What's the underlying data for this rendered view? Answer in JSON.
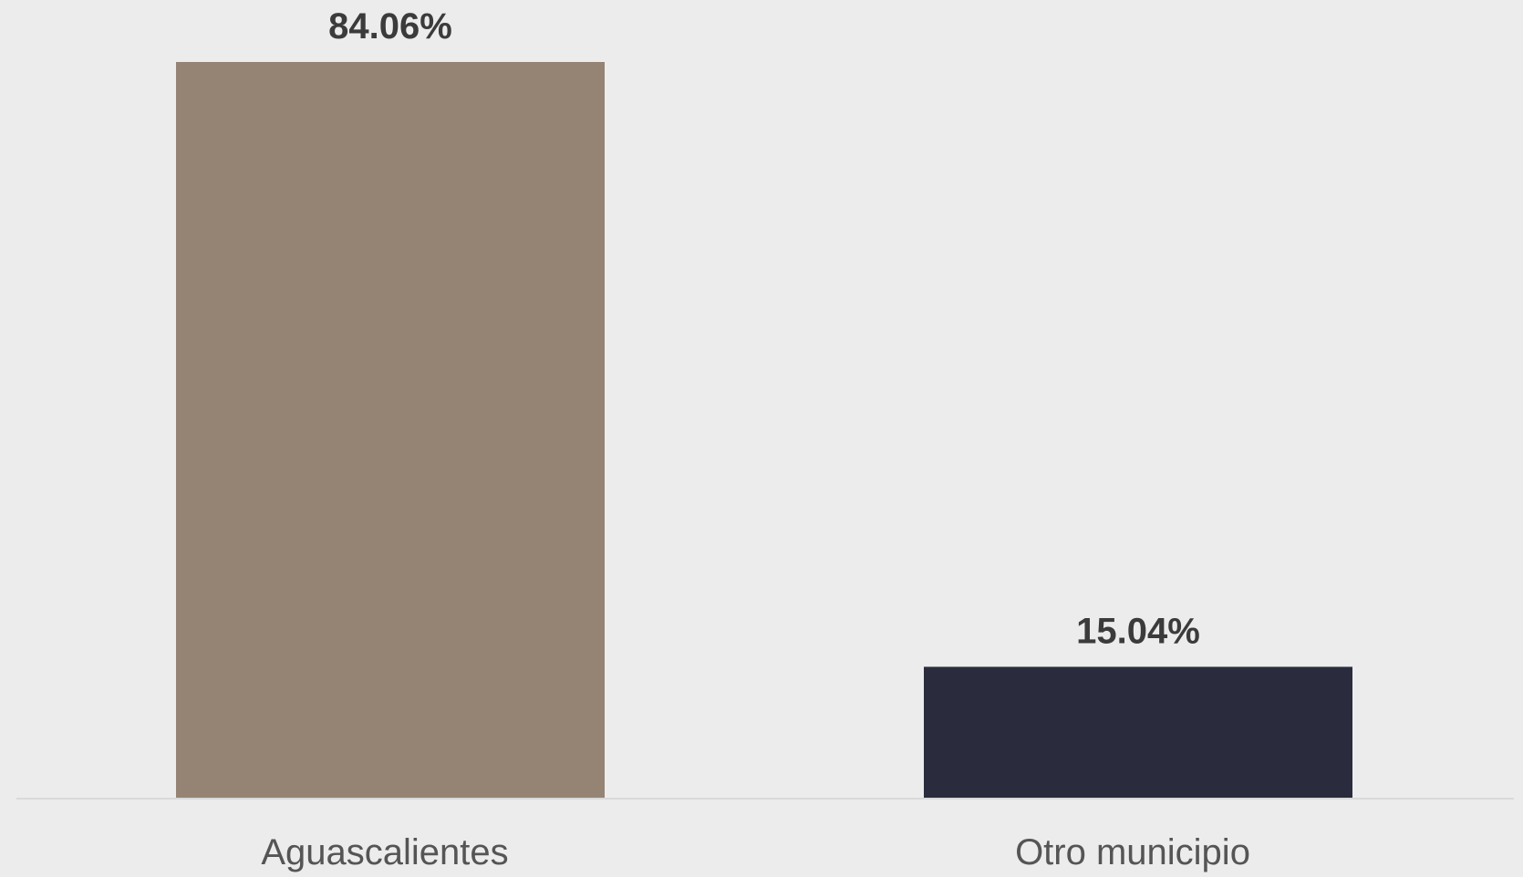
{
  "chart_data": {
    "type": "bar",
    "categories": [
      "Aguascalientes",
      "Otro municipio"
    ],
    "values": [
      84.06,
      15.04
    ],
    "value_labels": [
      "84.06%",
      "15.04%"
    ],
    "title": "",
    "xlabel": "",
    "ylabel": "",
    "ylim": [
      0,
      84.06
    ],
    "grid": false,
    "legend": "none",
    "colors": [
      "#958474",
      "#2a2b3d"
    ],
    "baseline_color": "#d9d9d9",
    "background": "#ececec"
  }
}
